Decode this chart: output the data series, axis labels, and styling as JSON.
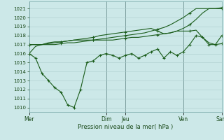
{
  "title": "Pression niveau de la mer( hPa )",
  "ylim": [
    1009.5,
    1021.8
  ],
  "yticks": [
    1010,
    1011,
    1012,
    1013,
    1014,
    1015,
    1016,
    1017,
    1018,
    1019,
    1020,
    1021
  ],
  "xtick_labels": [
    "Mer",
    "",
    "Dim",
    "Jeu",
    "",
    "Ven",
    "",
    "Sam"
  ],
  "xtick_positions": [
    0,
    6,
    12,
    15,
    18,
    24,
    27,
    30
  ],
  "vline_positions": [
    0,
    12,
    15,
    24,
    30
  ],
  "background_color": "#cce8e8",
  "grid_color": "#aacccc",
  "line_color": "#1a5c1a",
  "n_points": 31,
  "series": [
    [
      1016.0,
      1016.8,
      1017.0,
      1017.0,
      1017.0,
      1017.1,
      1017.2,
      1017.2,
      1017.3,
      1017.4,
      1017.5,
      1017.6,
      1017.7,
      1017.8,
      1017.9,
      1018.0,
      1018.1,
      1018.2,
      1018.3,
      1018.5,
      1018.7,
      1018.9,
      1019.2,
      1019.6,
      1020.0,
      1020.5,
      1021.0,
      1021.0,
      1021.0,
      1021.0,
      1021.1
    ],
    [
      1017.0,
      1017.0,
      1017.0,
      1017.1,
      1017.2,
      1017.3,
      1017.4,
      1017.5,
      1017.5,
      1017.5,
      1017.5,
      1017.5,
      1017.5,
      1017.5,
      1017.6,
      1017.7,
      1017.8,
      1017.8,
      1017.9,
      1018.0,
      1018.1,
      1018.2,
      1018.3,
      1018.5,
      1018.8,
      1019.2,
      1019.8,
      1020.5,
      1021.0,
      1021.0,
      1021.0
    ],
    [
      1017.0,
      1017.0,
      1017.0,
      1017.2,
      1017.3,
      1017.3,
      1017.4,
      1017.5,
      1017.6,
      1017.7,
      1017.8,
      1018.0,
      1018.1,
      1018.2,
      1018.3,
      1018.4,
      1018.5,
      1018.6,
      1018.7,
      1018.8,
      1018.5,
      1018.2,
      1018.3,
      1018.5,
      1018.5,
      1018.5,
      1018.6,
      1017.8,
      1017.2,
      1017.0,
      1017.1
    ],
    [
      1016.0,
      1015.5,
      1013.8,
      1013.0,
      1012.2,
      1011.7,
      1010.3,
      1010.0,
      1012.0,
      1015.0,
      1015.2,
      1015.8,
      1016.0,
      1015.8,
      1015.5,
      1015.8,
      1016.0,
      1015.5,
      1015.8,
      1016.2,
      1016.5,
      1015.5,
      1016.2,
      1015.8,
      1016.2,
      1017.0,
      1018.0,
      1017.8,
      1017.0,
      1017.0,
      1018.0
    ]
  ],
  "marker_series": [
    3
  ]
}
